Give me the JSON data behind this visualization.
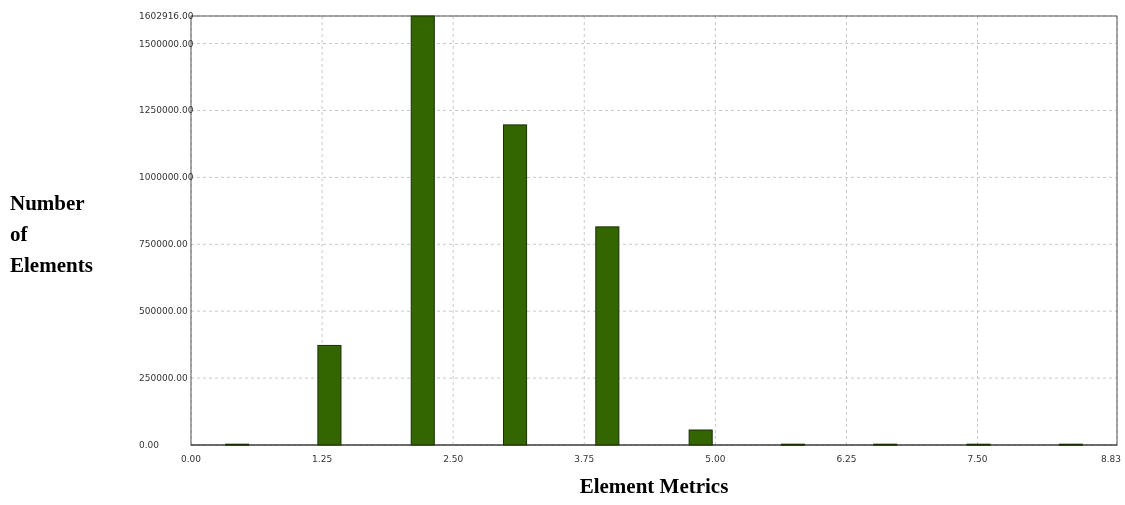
{
  "chart_data": {
    "type": "bar",
    "xlabel": "Element Metrics",
    "ylabel": "Number of Elements",
    "x": [
      0.44,
      1.32,
      2.21,
      3.09,
      3.97,
      4.86,
      5.74,
      6.62,
      7.51,
      8.39
    ],
    "values": [
      3000,
      372000,
      1602916,
      1196000,
      815000,
      56000,
      3000,
      3000,
      3000,
      3000
    ],
    "color": "#336600",
    "xlim": [
      0,
      8.83
    ],
    "xticks": [
      {
        "value": 0,
        "label": "0.00"
      },
      {
        "value": 1.25,
        "label": "1.25"
      },
      {
        "value": 2.5,
        "label": "2.50"
      },
      {
        "value": 3.75,
        "label": "3.75"
      },
      {
        "value": 5,
        "label": "5.00"
      },
      {
        "value": 6.25,
        "label": "6.25"
      },
      {
        "value": 7.5,
        "label": "7.50"
      },
      {
        "value": 8.83,
        "label": "8.83"
      }
    ],
    "ylim": [
      0,
      1602916
    ],
    "yticks": [
      {
        "value": 0,
        "label": "0.00"
      },
      {
        "value": 250000,
        "label": "250000.00"
      },
      {
        "value": 500000,
        "label": "500000.00"
      },
      {
        "value": 750000,
        "label": "750000.00"
      },
      {
        "value": 1000000,
        "label": "1000000.00"
      },
      {
        "value": 1250000,
        "label": "1250000.00"
      },
      {
        "value": 1500000,
        "label": "1500000.00"
      },
      {
        "value": 1602916,
        "label": "1602916.00"
      }
    ],
    "grid": true
  }
}
